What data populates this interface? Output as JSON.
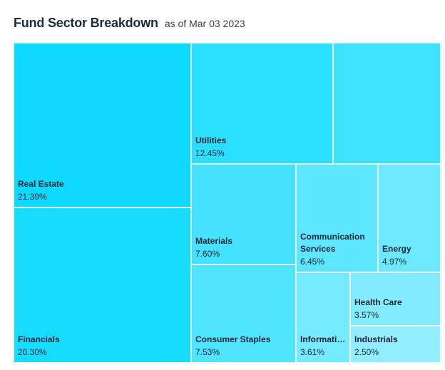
{
  "header": {
    "title": "Fund Sector Breakdown",
    "as_of": "as of Mar 03 2023"
  },
  "chart_data": {
    "type": "treemap",
    "title": "Fund Sector Breakdown",
    "subtitle": "as of Mar 03 2023",
    "unit": "%",
    "items": [
      {
        "key": "real-estate",
        "name": "Real Estate",
        "value": 21.39,
        "label": "21.39%",
        "color": "#0fd9ff"
      },
      {
        "key": "financials",
        "name": "Financials",
        "value": 20.3,
        "label": "20.30%",
        "color": "#17dcff"
      },
      {
        "key": "utilities",
        "name": "Utilities",
        "value": 12.45,
        "label": "12.45%",
        "color": "#2cdfff"
      },
      {
        "key": "unlabeled-sector",
        "name": "",
        "value": 10.42,
        "label": "",
        "color": "#3de2ff"
      },
      {
        "key": "materials",
        "name": "Materials",
        "value": 7.6,
        "label": "7.60%",
        "color": "#44e2ff"
      },
      {
        "key": "consumer-staples",
        "name": "Consumer Staples",
        "value": 7.53,
        "label": "7.53%",
        "color": "#4ee4ff"
      },
      {
        "key": "communication-services",
        "name": "Communication Services",
        "value": 6.45,
        "label": "6.45%",
        "color": "#5ce6ff"
      },
      {
        "key": "energy",
        "name": "Energy",
        "value": 4.97,
        "label": "4.97%",
        "color": "#6ce8ff"
      },
      {
        "key": "information-technology",
        "name": "Information Technology",
        "value": 3.61,
        "label": "3.61%",
        "color": "#75e9ff"
      },
      {
        "key": "health-care",
        "name": "Health Care",
        "value": 3.57,
        "label": "3.57%",
        "color": "#82ebff"
      },
      {
        "key": "industrials",
        "name": "Industrials",
        "value": 2.5,
        "label": "2.50%",
        "color": "#92eeff"
      }
    ]
  }
}
